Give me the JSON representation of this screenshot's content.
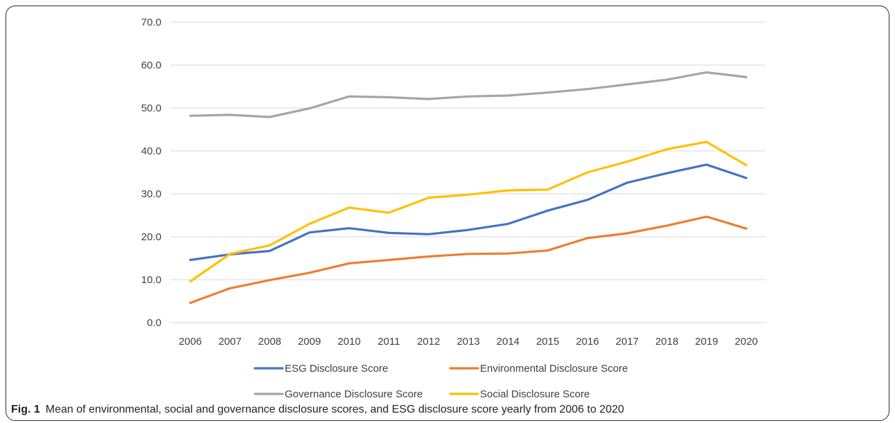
{
  "chart_data": {
    "type": "line",
    "title": "",
    "xlabel": "",
    "ylabel": "",
    "categories": [
      "2006",
      "2007",
      "2008",
      "2009",
      "2010",
      "2011",
      "2012",
      "2013",
      "2014",
      "2015",
      "2016",
      "2017",
      "2018",
      "2019",
      "2020"
    ],
    "yticks": [
      "0.0",
      "10.0",
      "20.0",
      "30.0",
      "40.0",
      "50.0",
      "60.0",
      "70.0"
    ],
    "ylim": [
      0,
      70
    ],
    "grid": true,
    "legend_position": "bottom",
    "series": [
      {
        "name": "ESG Disclosure Score",
        "color": "#4472C4",
        "values": [
          14.6,
          15.9,
          16.7,
          21.0,
          22.0,
          20.9,
          20.6,
          21.6,
          23.0,
          26.1,
          28.6,
          32.6,
          34.8,
          36.8,
          33.7
        ]
      },
      {
        "name": "Environmental Disclosure Score",
        "color": "#ED7D31",
        "values": [
          4.6,
          8.0,
          9.9,
          11.6,
          13.8,
          14.6,
          15.4,
          16.0,
          16.1,
          16.8,
          19.7,
          20.8,
          22.6,
          24.7,
          21.9
        ]
      },
      {
        "name": "Governance Disclosure Score",
        "color": "#A5A5A5",
        "values": [
          48.2,
          48.4,
          47.9,
          49.9,
          52.7,
          52.5,
          52.1,
          52.7,
          52.9,
          53.6,
          54.4,
          55.5,
          56.6,
          58.3,
          57.2
        ]
      },
      {
        "name": "Social Disclosure Score",
        "color": "#FFC000",
        "values": [
          9.6,
          16.0,
          18.0,
          23.0,
          26.8,
          25.6,
          29.1,
          29.8,
          30.8,
          31.0,
          35.0,
          37.5,
          40.4,
          42.1,
          36.7
        ]
      }
    ]
  },
  "caption": {
    "label": "Fig. 1",
    "text": "Mean of environmental, social and governance disclosure scores, and ESG disclosure score yearly from 2006 to 2020"
  }
}
